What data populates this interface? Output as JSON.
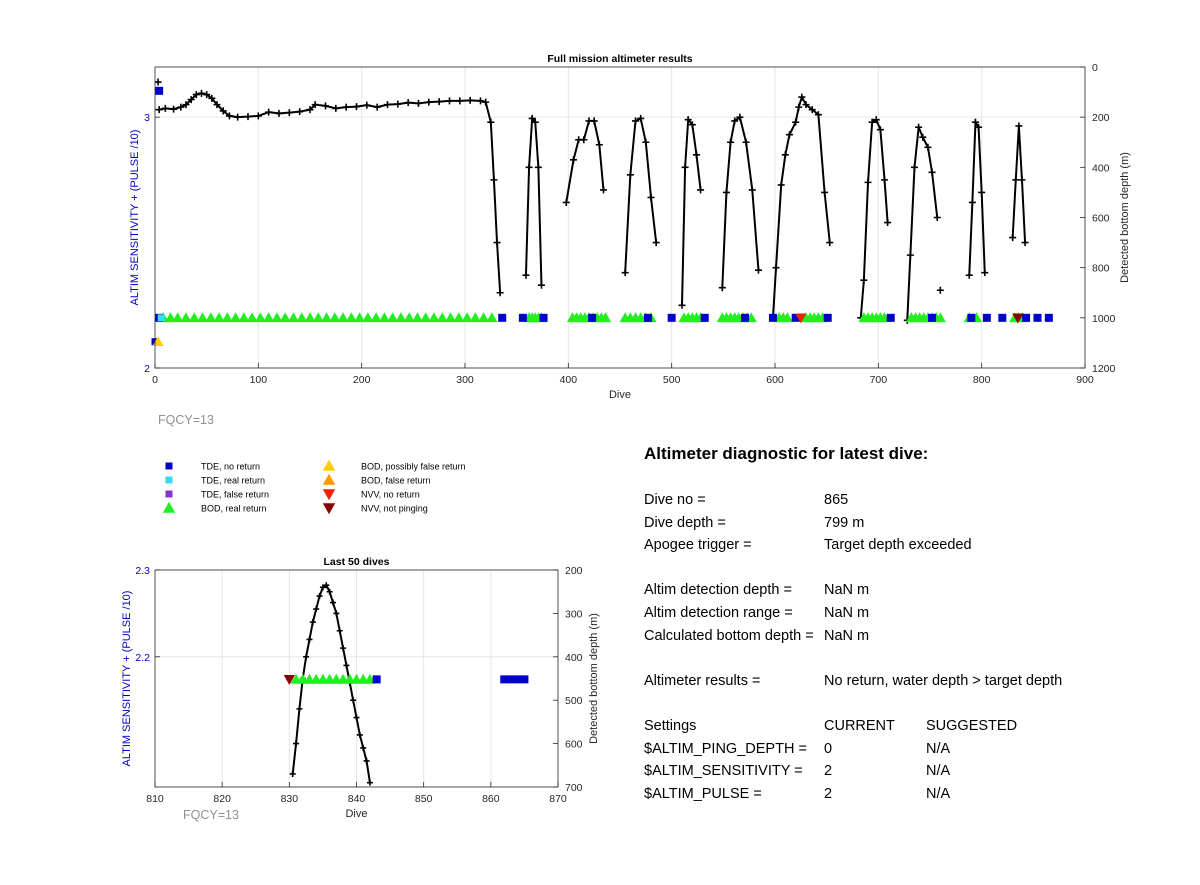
{
  "colors": {
    "axis_left": "#0000c0",
    "grid": "#e6e6e6",
    "line": "#000000",
    "fqcy": "#909090",
    "tde_no_return": "#0000cc",
    "tde_real_return": "#33ddee",
    "tde_false_return": "#8833cc",
    "bod_real_return": "#22ee22",
    "bod_possibly_false": "#ffcc00",
    "bod_false_return": "#ff9900",
    "nvv_no_return": "#ee2200",
    "nvv_not_pinging": "#880000"
  },
  "legend": [
    {
      "marker": "square",
      "color_key": "tde_no_return",
      "label": "TDE, no return"
    },
    {
      "marker": "square",
      "color_key": "tde_real_return",
      "label": "TDE, real return"
    },
    {
      "marker": "square",
      "color_key": "tde_false_return",
      "label": "TDE, false return"
    },
    {
      "marker": "triangle-up",
      "color_key": "bod_real_return",
      "label": "BOD, real return"
    },
    {
      "marker": "triangle-up",
      "color_key": "bod_possibly_false",
      "label": "BOD, possibly false return"
    },
    {
      "marker": "triangle-up",
      "color_key": "bod_false_return",
      "label": "BOD, false return"
    },
    {
      "marker": "triangle-down",
      "color_key": "nvv_no_return",
      "label": "NVV, no return"
    },
    {
      "marker": "triangle-down",
      "color_key": "nvv_not_pinging",
      "label": "NVV, not pinging"
    }
  ],
  "diagnostic": {
    "title": "Altimeter diagnostic for latest dive:",
    "dive_no_label": "Dive no =",
    "dive_no": "865",
    "dive_depth_label": "Dive depth =",
    "dive_depth": "799 m",
    "apogee_label": "Apogee trigger =",
    "apogee": "Target depth exceeded",
    "altim_depth_label": "Altim detection depth =",
    "altim_depth": "NaN m",
    "altim_range_label": "Altim detection range =",
    "altim_range": "NaN m",
    "calc_bottom_label": "Calculated bottom depth =",
    "calc_bottom": "NaN m",
    "results_label": "Altimeter results =",
    "results": "No return, water depth > target depth",
    "settings_label": "Settings",
    "current_label": "CURRENT",
    "suggested_label": "SUGGESTED",
    "ping_depth_label": "$ALTIM_PING_DEPTH =",
    "ping_depth_current": "0",
    "ping_depth_suggested": "N/A",
    "sensitivity_label": "$ALTIM_SENSITIVITY =",
    "sensitivity_current": "2",
    "sensitivity_suggested": "N/A",
    "pulse_label": "$ALTIM_PULSE =",
    "pulse_current": "2",
    "pulse_suggested": "N/A"
  },
  "chart_data": [
    {
      "type": "scatter",
      "title": "Full mission altimeter results",
      "xlabel": "Dive",
      "ylabel_left": "ALTIM SENSITIVITY + (PULSE /10)",
      "ylabel_right": "Detected bottom depth (m)",
      "xlim": [
        0,
        900
      ],
      "ylim_left": [
        2,
        3.2
      ],
      "ylim_right_reversed": [
        0,
        1200
      ],
      "xticks": [
        "0",
        "100",
        "200",
        "300",
        "400",
        "500",
        "600",
        "700",
        "800",
        "900"
      ],
      "yticks_left": [
        "2",
        "3"
      ],
      "yticks_right": [
        "0",
        "200",
        "400",
        "600",
        "800",
        "1000",
        "1200"
      ],
      "grid": true,
      "annotation": "FQCY=13",
      "depth_series": [
        [
          [
            4,
            170
          ],
          [
            10,
            165
          ],
          [
            18,
            168
          ],
          [
            25,
            160
          ],
          [
            30,
            150
          ],
          [
            35,
            130
          ],
          [
            40,
            110
          ],
          [
            45,
            105
          ],
          [
            50,
            110
          ],
          [
            55,
            125
          ],
          [
            60,
            150
          ],
          [
            66,
            175
          ],
          [
            72,
            195
          ],
          [
            80,
            200
          ],
          [
            90,
            198
          ],
          [
            100,
            195
          ],
          [
            110,
            180
          ],
          [
            120,
            185
          ],
          [
            130,
            182
          ],
          [
            140,
            178
          ],
          [
            150,
            170
          ],
          [
            155,
            150
          ],
          [
            165,
            155
          ],
          [
            175,
            165
          ],
          [
            185,
            160
          ],
          [
            195,
            158
          ],
          [
            205,
            152
          ],
          [
            215,
            160
          ],
          [
            225,
            150
          ],
          [
            235,
            148
          ],
          [
            245,
            142
          ],
          [
            255,
            145
          ],
          [
            265,
            140
          ],
          [
            275,
            138
          ],
          [
            285,
            135
          ],
          [
            295,
            135
          ],
          [
            305,
            133
          ],
          [
            315,
            135
          ],
          [
            320,
            140
          ],
          [
            325,
            220
          ],
          [
            328,
            450
          ],
          [
            331,
            700
          ],
          [
            334,
            900
          ]
        ],
        [
          [
            359,
            830
          ],
          [
            362,
            400
          ],
          [
            365,
            205
          ],
          [
            368,
            220
          ],
          [
            371,
            400
          ],
          [
            374,
            870
          ]
        ],
        [
          [
            398,
            540
          ],
          [
            405,
            370
          ],
          [
            410,
            290
          ],
          [
            415,
            290
          ],
          [
            420,
            215
          ],
          [
            425,
            215
          ],
          [
            430,
            310
          ],
          [
            434,
            490
          ]
        ],
        [
          [
            455,
            820
          ],
          [
            460,
            430
          ],
          [
            465,
            215
          ],
          [
            470,
            205
          ],
          [
            475,
            300
          ],
          [
            480,
            520
          ],
          [
            485,
            700
          ]
        ],
        [
          [
            510,
            950
          ],
          [
            513,
            400
          ],
          [
            516,
            210
          ],
          [
            520,
            230
          ],
          [
            524,
            350
          ],
          [
            528,
            490
          ]
        ],
        [
          [
            549,
            880
          ],
          [
            553,
            500
          ],
          [
            557,
            300
          ],
          [
            561,
            215
          ],
          [
            566,
            200
          ],
          [
            572,
            300
          ],
          [
            578,
            490
          ],
          [
            584,
            810
          ]
        ],
        [
          [
            598,
            1000
          ],
          [
            601,
            800
          ],
          [
            606,
            470
          ],
          [
            610,
            350
          ],
          [
            614,
            270
          ],
          [
            620,
            220
          ],
          [
            623,
            160
          ],
          [
            626,
            120
          ],
          [
            630,
            150
          ],
          [
            636,
            170
          ],
          [
            642,
            190
          ],
          [
            648,
            500
          ],
          [
            653,
            700
          ]
        ],
        [
          [
            683,
            1000
          ],
          [
            686,
            850
          ],
          [
            690,
            460
          ],
          [
            694,
            220
          ],
          [
            698,
            210
          ],
          [
            702,
            250
          ],
          [
            706,
            450
          ],
          [
            709,
            620
          ]
        ],
        [
          [
            728,
            1010
          ],
          [
            731,
            750
          ],
          [
            735,
            400
          ],
          [
            739,
            240
          ],
          [
            743,
            280
          ],
          [
            748,
            320
          ],
          [
            752,
            420
          ],
          [
            757,
            600
          ]
        ],
        [
          [
            788,
            830
          ],
          [
            791,
            540
          ],
          [
            794,
            220
          ],
          [
            797,
            240
          ],
          [
            800,
            500
          ],
          [
            803,
            820
          ]
        ],
        [
          [
            830,
            680
          ],
          [
            833,
            450
          ],
          [
            836,
            235
          ],
          [
            839,
            450
          ],
          [
            842,
            700
          ]
        ]
      ],
      "isolated_depth_points": [
        [
          3,
          60
        ],
        [
          760,
          890
        ]
      ],
      "tde_no_return_x": [
        4,
        336,
        356,
        376,
        423,
        477,
        500,
        532,
        571,
        598,
        620,
        651,
        712,
        752,
        790,
        805,
        820,
        843,
        854,
        865
      ],
      "bod_real_return_x": [
        8,
        15,
        22,
        30,
        38,
        46,
        54,
        62,
        70,
        78,
        86,
        94,
        102,
        110,
        118,
        126,
        134,
        142,
        150,
        158,
        166,
        174,
        182,
        190,
        198,
        206,
        214,
        222,
        230,
        238,
        246,
        254,
        262,
        270,
        278,
        286,
        294,
        302,
        310,
        318,
        326,
        362,
        365,
        368,
        371,
        374,
        404,
        408,
        412,
        416,
        420,
        424,
        428,
        432,
        436,
        455,
        460,
        465,
        470,
        475,
        480,
        512,
        516,
        520,
        524,
        528,
        549,
        553,
        557,
        561,
        565,
        569,
        573,
        577,
        604,
        608,
        612,
        630,
        634,
        638,
        642,
        646,
        686,
        690,
        694,
        698,
        702,
        706,
        732,
        736,
        740,
        744,
        748,
        752,
        756,
        760,
        788,
        795,
        832,
        836,
        840
      ],
      "bod_possibly_false_x": [
        3
      ],
      "nvv_no_return_x": [
        625
      ],
      "nvv_not_pinging_x": [
        835
      ]
    },
    {
      "type": "scatter",
      "title": "Last 50 dives",
      "xlabel": "Dive",
      "ylabel_left": "ALTIM SENSITIVITY + (PULSE /10)",
      "ylabel_right": "Detected bottom depth (m)",
      "xlim": [
        810,
        870
      ],
      "ylim_left": [
        2.05,
        2.3
      ],
      "ylim_right_reversed": [
        200,
        700
      ],
      "xticks": [
        "810",
        "820",
        "830",
        "840",
        "850",
        "860",
        "870"
      ],
      "yticks_left": [
        "2.2",
        "2.3"
      ],
      "yticks_right": [
        "200",
        "300",
        "400",
        "500",
        "600",
        "700"
      ],
      "grid": true,
      "annotation": "FQCY=13",
      "depth_series": [
        [
          [
            830.5,
            670
          ],
          [
            831,
            600
          ],
          [
            831.5,
            520
          ],
          [
            832,
            450
          ],
          [
            832.5,
            400
          ],
          [
            833,
            360
          ],
          [
            833.5,
            320
          ],
          [
            834,
            290
          ],
          [
            834.5,
            260
          ],
          [
            835,
            240
          ],
          [
            835.5,
            235
          ],
          [
            836,
            250
          ],
          [
            836.5,
            275
          ],
          [
            837,
            300
          ],
          [
            837.5,
            340
          ],
          [
            838,
            380
          ],
          [
            838.5,
            420
          ],
          [
            839,
            460
          ],
          [
            839.5,
            500
          ],
          [
            840,
            540
          ],
          [
            840.5,
            580
          ],
          [
            841,
            610
          ],
          [
            841.5,
            640
          ],
          [
            842,
            690
          ]
        ]
      ],
      "tde_no_return_x": [
        843,
        862,
        863,
        864,
        865
      ],
      "bod_real_return_x": [
        831,
        832,
        833,
        834,
        835,
        836,
        837,
        838,
        839,
        840,
        841,
        842
      ],
      "nvv_not_pinging_x": [
        830
      ]
    }
  ]
}
